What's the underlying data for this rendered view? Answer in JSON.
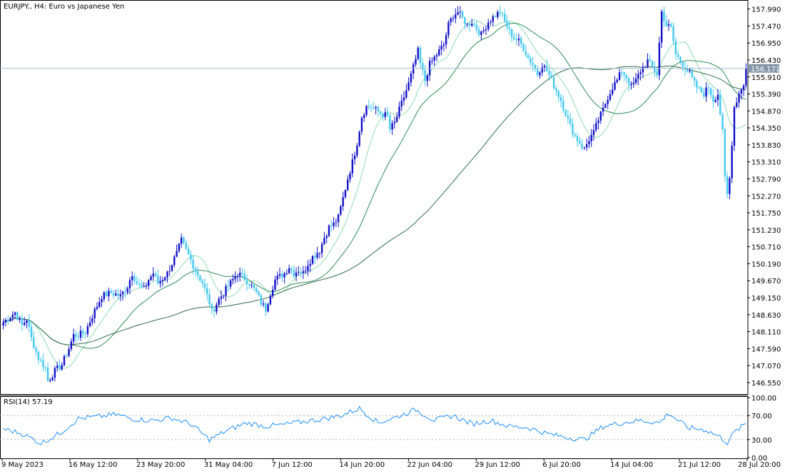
{
  "window": {
    "title": "EURJPY., H4:  Euro vs Japanese Yen"
  },
  "indicator": {
    "label": "RSI(14) 57.19"
  },
  "colors": {
    "bull": "#1010c8",
    "bear": "#40c8f0",
    "ma_fast": "#90dcb0",
    "ma_mid": "#2e8b57",
    "ma_slow": "#2e6b4a",
    "rsi_line": "#1e90ff",
    "current_price_line": "#a8bcd0",
    "current_price_badge": "#8496a8",
    "frame": "#000000",
    "levels": "#b0b0b0"
  },
  "chart_data": [
    {
      "type": "candlestick",
      "title": "EURJPY., H4:  Euro vs Japanese Yen",
      "ylim": [
        146.2,
        158.2
      ],
      "grid": false,
      "y_ticks": [
        "157.990",
        "157.470",
        "156.950",
        "156.430",
        "155.910",
        "155.390",
        "154.870",
        "154.350",
        "153.830",
        "153.310",
        "152.790",
        "152.270",
        "151.750",
        "151.230",
        "150.710",
        "150.190",
        "149.670",
        "149.150",
        "148.630",
        "148.110",
        "147.590",
        "147.070",
        "146.550"
      ],
      "x_ticks": [
        "9 May 2023",
        "16 May 12:00",
        "23 May 20:00",
        "31 May 04:00",
        "7 Jun 12:00",
        "14 Jun 20:00",
        "22 Jun 04:00",
        "29 Jun 12:00",
        "6 Jul 20:00",
        "14 Jul 04:00",
        "21 Jul 12:00",
        "28 Jul 20:00"
      ],
      "current_price": "156.171",
      "price_path": [
        [
          0,
          148.4
        ],
        [
          5,
          148.7
        ],
        [
          8,
          148.3
        ],
        [
          10,
          148.5
        ],
        [
          12,
          147.9
        ],
        [
          15,
          147.3
        ],
        [
          18,
          147.0
        ],
        [
          19,
          146.6
        ],
        [
          22,
          146.9
        ],
        [
          25,
          147.1
        ],
        [
          28,
          147.6
        ],
        [
          30,
          148.0
        ],
        [
          32,
          148.0
        ],
        [
          35,
          148.1
        ],
        [
          38,
          148.6
        ],
        [
          40,
          148.9
        ],
        [
          42,
          149.2
        ],
        [
          46,
          149.3
        ],
        [
          50,
          149.2
        ],
        [
          53,
          149.5
        ],
        [
          55,
          149.9
        ],
        [
          57,
          149.6
        ],
        [
          60,
          149.4
        ],
        [
          62,
          149.7
        ],
        [
          64,
          149.9
        ],
        [
          66,
          149.6
        ],
        [
          70,
          149.9
        ],
        [
          72,
          150.2
        ],
        [
          74,
          150.5
        ],
        [
          76,
          150.9
        ],
        [
          78,
          150.6
        ],
        [
          80,
          150.3
        ],
        [
          82,
          150.0
        ],
        [
          85,
          149.6
        ],
        [
          88,
          149.0
        ],
        [
          89,
          148.7
        ],
        [
          92,
          149.1
        ],
        [
          95,
          149.4
        ],
        [
          98,
          149.7
        ],
        [
          100,
          149.9
        ],
        [
          102,
          149.8
        ],
        [
          105,
          149.6
        ],
        [
          108,
          149.3
        ],
        [
          110,
          149.0
        ],
        [
          112,
          148.8
        ],
        [
          114,
          149.3
        ],
        [
          116,
          149.7
        ],
        [
          120,
          149.9
        ],
        [
          122,
          150.1
        ],
        [
          124,
          149.9
        ],
        [
          126,
          150.0
        ],
        [
          128,
          149.9
        ],
        [
          130,
          150.2
        ],
        [
          132,
          150.4
        ],
        [
          135,
          150.6
        ],
        [
          137,
          151.0
        ],
        [
          139,
          151.3
        ],
        [
          141,
          151.4
        ],
        [
          143,
          151.6
        ],
        [
          145,
          152.2
        ],
        [
          147,
          152.8
        ],
        [
          149,
          153.3
        ],
        [
          151,
          153.9
        ],
        [
          153,
          154.7
        ],
        [
          155,
          155.0
        ],
        [
          157,
          155.0
        ],
        [
          159,
          154.9
        ],
        [
          161,
          154.8
        ],
        [
          164,
          154.7
        ],
        [
          165,
          154.3
        ],
        [
          167,
          154.5
        ],
        [
          169,
          154.9
        ],
        [
          171,
          155.3
        ],
        [
          173,
          155.7
        ],
        [
          175,
          156.2
        ],
        [
          177,
          156.7
        ],
        [
          178,
          156.3
        ],
        [
          180,
          155.8
        ],
        [
          182,
          156.3
        ],
        [
          185,
          156.6
        ],
        [
          188,
          156.9
        ],
        [
          190,
          157.5
        ],
        [
          192,
          157.8
        ],
        [
          194,
          157.9
        ],
        [
          196,
          157.7
        ],
        [
          198,
          157.5
        ],
        [
          200,
          157.6
        ],
        [
          204,
          157.2
        ],
        [
          207,
          157.6
        ],
        [
          210,
          157.8
        ],
        [
          212,
          157.9
        ],
        [
          214,
          157.6
        ],
        [
          216,
          157.3
        ],
        [
          218,
          157.1
        ],
        [
          220,
          157.0
        ],
        [
          222,
          156.8
        ],
        [
          224,
          156.5
        ],
        [
          226,
          156.3
        ],
        [
          228,
          156.0
        ],
        [
          230,
          156.3
        ],
        [
          232,
          156.1
        ],
        [
          234,
          155.8
        ],
        [
          236,
          155.5
        ],
        [
          238,
          155.2
        ],
        [
          240,
          154.8
        ],
        [
          242,
          154.4
        ],
        [
          244,
          154.1
        ],
        [
          246,
          153.9
        ],
        [
          248,
          153.7
        ],
        [
          250,
          154.0
        ],
        [
          252,
          154.2
        ],
        [
          254,
          154.6
        ],
        [
          256,
          154.9
        ],
        [
          258,
          155.3
        ],
        [
          260,
          155.6
        ],
        [
          262,
          155.8
        ],
        [
          264,
          156.1
        ],
        [
          266,
          155.9
        ],
        [
          268,
          155.6
        ],
        [
          270,
          155.8
        ],
        [
          272,
          156.1
        ],
        [
          275,
          156.4
        ],
        [
          277,
          156.2
        ],
        [
          279,
          156.0
        ],
        [
          281,
          157.9
        ],
        [
          283,
          157.5
        ],
        [
          285,
          157.4
        ],
        [
          287,
          156.6
        ],
        [
          289,
          156.4
        ],
        [
          291,
          156.2
        ],
        [
          293,
          156.0
        ],
        [
          295,
          155.7
        ],
        [
          297,
          155.5
        ],
        [
          299,
          155.4
        ],
        [
          301,
          155.6
        ],
        [
          303,
          155.2
        ],
        [
          305,
          155.4
        ],
        [
          307,
          154.2
        ],
        [
          308,
          152.8
        ],
        [
          309,
          152.3
        ],
        [
          310,
          152.8
        ],
        [
          311,
          153.9
        ],
        [
          312,
          155.0
        ],
        [
          314,
          155.4
        ],
        [
          316,
          155.7
        ],
        [
          317,
          156.17
        ]
      ]
    },
    {
      "type": "line",
      "title": "RSI(14) 57.19",
      "ylim": [
        0,
        100
      ],
      "y_ticks": [
        "100.00",
        "70.00",
        "30.00",
        "0.00"
      ],
      "levels": [
        70,
        30
      ],
      "rsi_path": [
        [
          0,
          48
        ],
        [
          8,
          40
        ],
        [
          16,
          24
        ],
        [
          24,
          40
        ],
        [
          32,
          65
        ],
        [
          40,
          68
        ],
        [
          48,
          72
        ],
        [
          56,
          64
        ],
        [
          64,
          62
        ],
        [
          72,
          66
        ],
        [
          80,
          56
        ],
        [
          88,
          30
        ],
        [
          96,
          46
        ],
        [
          104,
          58
        ],
        [
          112,
          52
        ],
        [
          120,
          55
        ],
        [
          128,
          60
        ],
        [
          136,
          64
        ],
        [
          144,
          70
        ],
        [
          152,
          82
        ],
        [
          160,
          58
        ],
        [
          168,
          68
        ],
        [
          176,
          80
        ],
        [
          184,
          62
        ],
        [
          192,
          70
        ],
        [
          200,
          56
        ],
        [
          208,
          62
        ],
        [
          216,
          52
        ],
        [
          224,
          50
        ],
        [
          232,
          40
        ],
        [
          240,
          34
        ],
        [
          248,
          30
        ],
        [
          256,
          52
        ],
        [
          264,
          58
        ],
        [
          272,
          62
        ],
        [
          280,
          58
        ],
        [
          284,
          74
        ],
        [
          292,
          50
        ],
        [
          300,
          46
        ],
        [
          306,
          34
        ],
        [
          309,
          25
        ],
        [
          312,
          42
        ],
        [
          317,
          57
        ]
      ]
    }
  ]
}
